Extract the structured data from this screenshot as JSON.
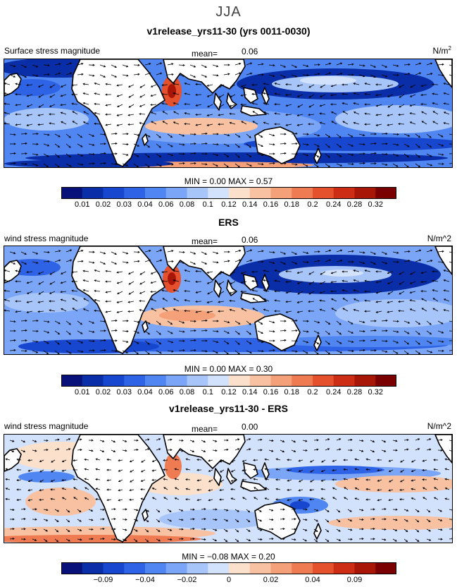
{
  "figure": {
    "season": "JJA"
  },
  "panels": [
    {
      "title": "v1release_yrs11-30 (yrs 0011-0030)",
      "variable": "Surface stress magnitude",
      "mean_label": "mean=",
      "mean_value": "0.06",
      "unit_base": "N/m",
      "unit_sup": "2",
      "stats_text": "MIN =   0.00  MAX =   0.57",
      "tick_labels": [
        "0.01",
        "0.02",
        "0.03",
        "0.04",
        "0.06",
        "0.08",
        "0.1",
        "0.12",
        "0.14",
        "0.16",
        "0.18",
        "0.2",
        "0.24",
        "0.28",
        "0.32"
      ]
    },
    {
      "title": "ERS",
      "variable": "wind stress magnitude",
      "mean_label": "mean=",
      "mean_value": "0.06",
      "unit_base": "N/m^2",
      "unit_sup": "",
      "stats_text": "MIN =   0.00  MAX =   0.30",
      "tick_labels": [
        "0.01",
        "0.02",
        "0.03",
        "0.04",
        "0.06",
        "0.08",
        "0.1",
        "0.12",
        "0.14",
        "0.16",
        "0.18",
        "0.2",
        "0.24",
        "0.28",
        "0.32"
      ]
    },
    {
      "title": "v1release_yrs11-30 - ERS",
      "variable": "wind stress magnitude",
      "mean_label": "mean=",
      "mean_value": "0.00",
      "unit_base": "N/m^2",
      "unit_sup": "",
      "stats_text": "MIN =  −0.08  MAX =   0.20",
      "tick_labels": [
        "−0.09",
        "−0.04",
        "−0.02",
        "0",
        "0.02",
        "0.04",
        "0.09"
      ]
    }
  ],
  "chart_data": [
    {
      "type": "heatmap",
      "title": "v1release_yrs11-30 (yrs 0011-0030)",
      "variable": "Surface stress magnitude",
      "units": "N/m2",
      "mean": 0.06,
      "min": 0.0,
      "max": 0.57,
      "color_levels": [
        0.01,
        0.02,
        0.03,
        0.04,
        0.06,
        0.08,
        0.1,
        0.12,
        0.14,
        0.16,
        0.18,
        0.2,
        0.24,
        0.28,
        0.32
      ],
      "colors": [
        "#08107a",
        "#0a2ea8",
        "#1747cf",
        "#2e63e6",
        "#4f86f2",
        "#7ba6f7",
        "#a8c5fa",
        "#d2e1fc",
        "#fbe0cc",
        "#f8c2a2",
        "#f4a078",
        "#ef7b52",
        "#e5502d",
        "#cc2d14",
        "#a81608",
        "#7a0000"
      ]
    },
    {
      "type": "heatmap",
      "title": "ERS",
      "variable": "wind stress magnitude",
      "units": "N/m^2",
      "mean": 0.06,
      "min": 0.0,
      "max": 0.3,
      "color_levels": [
        0.01,
        0.02,
        0.03,
        0.04,
        0.06,
        0.08,
        0.1,
        0.12,
        0.14,
        0.16,
        0.18,
        0.2,
        0.24,
        0.28,
        0.32
      ],
      "colors": [
        "#08107a",
        "#0a2ea8",
        "#1747cf",
        "#2e63e6",
        "#4f86f2",
        "#7ba6f7",
        "#a8c5fa",
        "#d2e1fc",
        "#fbe0cc",
        "#f8c2a2",
        "#f4a078",
        "#ef7b52",
        "#e5502d",
        "#cc2d14",
        "#a81608",
        "#7a0000"
      ]
    },
    {
      "type": "heatmap",
      "title": "v1release_yrs11-30 - ERS",
      "variable": "wind stress magnitude",
      "units": "N/m^2",
      "mean": 0.0,
      "min": -0.08,
      "max": 0.2,
      "color_levels": [
        -0.09,
        -0.04,
        -0.02,
        0,
        0.02,
        0.04,
        0.09
      ],
      "colors": [
        "#08107a",
        "#0a2ea8",
        "#1747cf",
        "#2e63e6",
        "#4f86f2",
        "#7ba6f7",
        "#a8c5fa",
        "#d2e1fc",
        "#fbe0cc",
        "#f8c2a2",
        "#f4a078",
        "#ef7b52",
        "#e5502d",
        "#cc2d14",
        "#a81608",
        "#7a0000"
      ]
    }
  ]
}
